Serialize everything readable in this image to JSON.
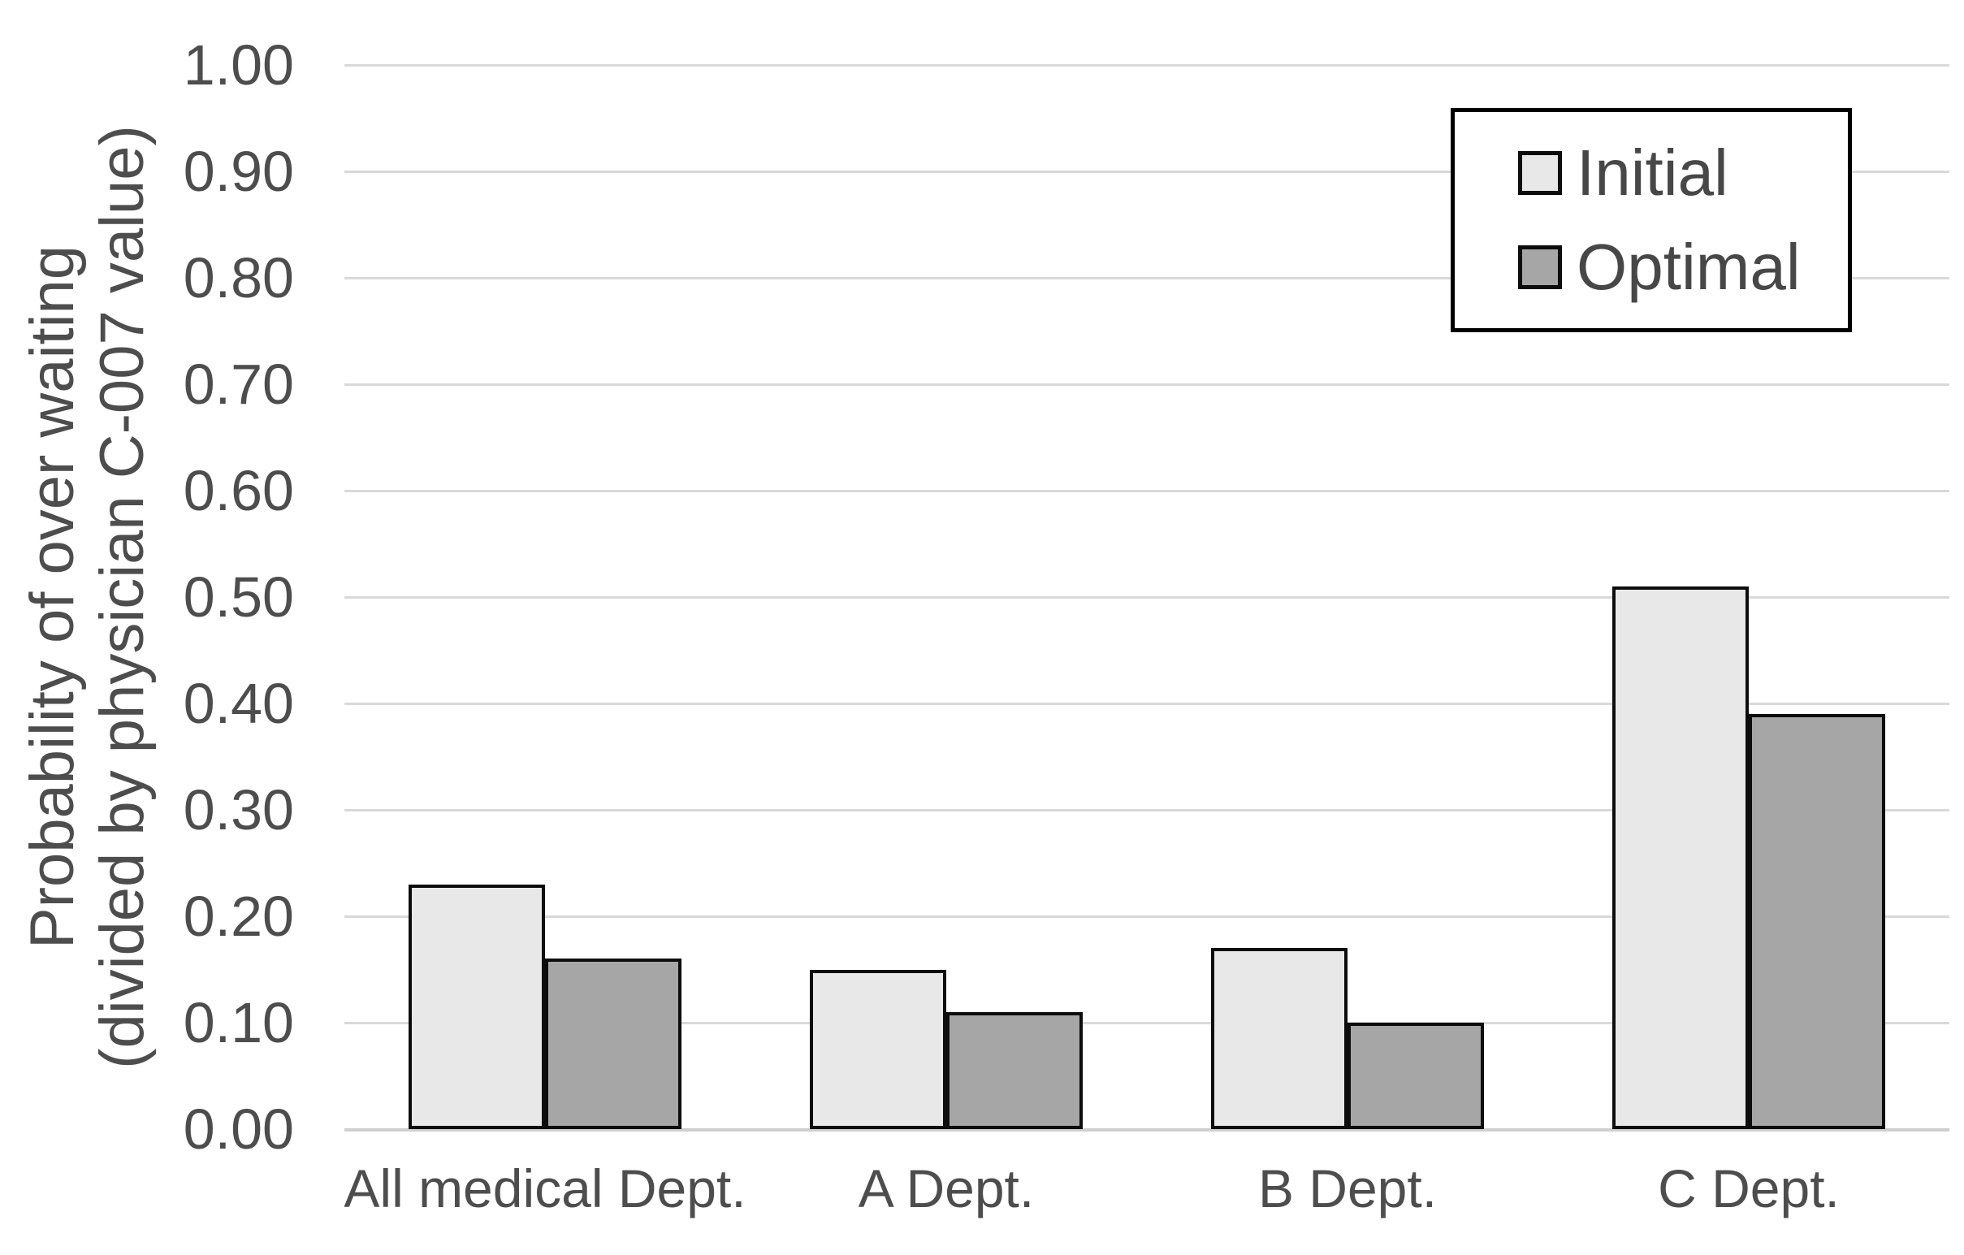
{
  "chart_data": {
    "type": "bar",
    "title": "",
    "categories": [
      "All medical Dept.",
      "A Dept.",
      "B Dept.",
      "C Dept."
    ],
    "series": [
      {
        "name": "Initial",
        "color": "#e8e8e8",
        "values": [
          0.23,
          0.15,
          0.17,
          0.51
        ]
      },
      {
        "name": "Optimal",
        "color": "#a6a6a6",
        "values": [
          0.16,
          0.11,
          0.1,
          0.39
        ]
      }
    ],
    "xlabel": "",
    "ylabel": "Probability of over waiting (divided by physician C-007 value)",
    "ylabel_line1": "Probability of over waiting",
    "ylabel_line2": "(divided by physician C-007 value)",
    "ylim": [
      0.0,
      1.0
    ],
    "ytick_step": 0.1,
    "yticks": [
      "0.00",
      "0.10",
      "0.20",
      "0.30",
      "0.40",
      "0.50",
      "0.60",
      "0.70",
      "0.80",
      "0.90",
      "1.00"
    ],
    "grid": true,
    "legend_position": "top-right",
    "colors": {
      "bar_border": "#0d0d0d",
      "gridline": "#d9d9d9",
      "text": "#4d4d4d",
      "legend_border": "#000000",
      "background": "#ffffff"
    }
  }
}
